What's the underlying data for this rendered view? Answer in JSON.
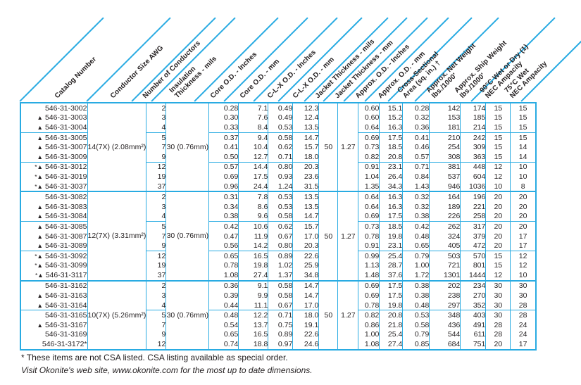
{
  "colors": {
    "accent": "#29abe2",
    "text": "#231f20",
    "background": "#ffffff"
  },
  "columns": [
    "Catalog Number",
    "Conductor Size AWG",
    "Number of Conductors",
    "Insulation\nThickness - mils",
    "Core O.D. - Inches",
    "Core O.D. - mm",
    "C-L-X O.D. - Inches",
    "C-L-X O.D. - mm",
    "Jacket Thickness - mils",
    "Jacket Thickness - mm",
    "Approx. O.D. - Inches",
    "Approx. O.D. - mm",
    "Cross-Sectional\nArea (sq. in.) †",
    "Approx. Net Weight\nlbs./1000'",
    "Approx. Ship Weight\nlbs./1000'",
    "90°C Wet or Dry (1)\nNEC Ampacity",
    "75°C Wet\nNEC Ampacity"
  ],
  "marker_legend": {
    "triangle": "▲",
    "asterisk": "*"
  },
  "groups": [
    {
      "conductor_size": "14(7X)\n(2.08mm²)",
      "insulation": "30\n(0.76mm)",
      "jacket_mils": "50",
      "jacket_mm": "1.27",
      "rows": [
        {
          "m": "",
          "cat": "546-31-3002",
          "n": "2",
          "sub": false,
          "vals": [
            "0.28",
            "7.1",
            "0.49",
            "12.3",
            "0.60",
            "15.1",
            "0.28",
            "142",
            "174",
            "15",
            "15"
          ]
        },
        {
          "m": "▲",
          "cat": "546-31-3003",
          "n": "3",
          "sub": false,
          "vals": [
            "0.30",
            "7.6",
            "0.49",
            "12.4",
            "0.60",
            "15.2",
            "0.32",
            "153",
            "185",
            "15",
            "15"
          ]
        },
        {
          "m": "▲",
          "cat": "546-31-3004",
          "n": "4",
          "sub": false,
          "vals": [
            "0.33",
            "8.4",
            "0.53",
            "13.5",
            "0.64",
            "16.3",
            "0.36",
            "181",
            "214",
            "15",
            "15"
          ]
        },
        {
          "m": "▲",
          "cat": "546-31-3005",
          "n": "5",
          "sub": true,
          "vals": [
            "0.37",
            "9.4",
            "0.58",
            "14.7",
            "0.69",
            "17.5",
            "0.41",
            "210",
            "242",
            "15",
            "15"
          ]
        },
        {
          "m": "▲",
          "cat": "546-31-3007",
          "n": "7",
          "sub": false,
          "vals": [
            "0.41",
            "10.4",
            "0.62",
            "15.7",
            "0.73",
            "18.5",
            "0.46",
            "254",
            "309",
            "15",
            "14"
          ]
        },
        {
          "m": "▲",
          "cat": "546-31-3009",
          "n": "9",
          "sub": false,
          "vals": [
            "0.50",
            "12.7",
            "0.71",
            "18.0",
            "0.82",
            "20.8",
            "0.57",
            "308",
            "363",
            "15",
            "14"
          ]
        },
        {
          "m": "*▲",
          "cat": "546-31-3012",
          "n": "12",
          "sub": true,
          "vals": [
            "0.57",
            "14.4",
            "0.80",
            "20.3",
            "0.91",
            "23.1",
            "0.71",
            "381",
            "448",
            "12",
            "10"
          ]
        },
        {
          "m": "*▲",
          "cat": "546-31-3019",
          "n": "19",
          "sub": false,
          "vals": [
            "0.69",
            "17.5",
            "0.93",
            "23.6",
            "1.04",
            "26.4",
            "0.84",
            "537",
            "604",
            "12",
            "10"
          ]
        },
        {
          "m": "*▲",
          "cat": "546-31-3037",
          "n": "37",
          "sub": false,
          "vals": [
            "0.96",
            "24.4",
            "1.24",
            "31.5",
            "1.35",
            "34.3",
            "1.43",
            "946",
            "1036",
            "10",
            "8"
          ]
        }
      ]
    },
    {
      "conductor_size": "12(7X)\n(3.31mm²)",
      "insulation": "30\n(0.76mm)",
      "jacket_mils": "50",
      "jacket_mm": "1.27",
      "rows": [
        {
          "m": "",
          "cat": "546-31-3082",
          "n": "2",
          "sub": false,
          "vals": [
            "0.31",
            "7.8",
            "0.53",
            "13.5",
            "0.64",
            "16.3",
            "0.32",
            "164",
            "196",
            "20",
            "20"
          ]
        },
        {
          "m": "▲",
          "cat": "546-31-3083",
          "n": "3",
          "sub": false,
          "vals": [
            "0.34",
            "8.6",
            "0.53",
            "13.5",
            "0.64",
            "16.3",
            "0.32",
            "189",
            "221",
            "20",
            "20"
          ]
        },
        {
          "m": "▲",
          "cat": "546-31-3084",
          "n": "4",
          "sub": false,
          "vals": [
            "0.38",
            "9.6",
            "0.58",
            "14.7",
            "0.69",
            "17.5",
            "0.38",
            "226",
            "258",
            "20",
            "20"
          ]
        },
        {
          "m": "▲",
          "cat": "546-31-3085",
          "n": "5",
          "sub": true,
          "vals": [
            "0.42",
            "10.6",
            "0.62",
            "15.7",
            "0.73",
            "18.5",
            "0.42",
            "262",
            "317",
            "20",
            "20"
          ]
        },
        {
          "m": "▲",
          "cat": "546-31-3087",
          "n": "7",
          "sub": false,
          "vals": [
            "0.47",
            "11.9",
            "0.67",
            "17.0",
            "0.78",
            "19.8",
            "0.48",
            "324",
            "379",
            "20",
            "17"
          ]
        },
        {
          "m": "▲",
          "cat": "546-31-3089",
          "n": "9",
          "sub": false,
          "vals": [
            "0.56",
            "14.2",
            "0.80",
            "20.3",
            "0.91",
            "23.1",
            "0.65",
            "405",
            "472",
            "20",
            "17"
          ]
        },
        {
          "m": "*▲",
          "cat": "546-31-3092",
          "n": "12",
          "sub": true,
          "vals": [
            "0.65",
            "16.5",
            "0.89",
            "22.6",
            "0.99",
            "25.4",
            "0.79",
            "503",
            "570",
            "15",
            "12"
          ]
        },
        {
          "m": "*▲",
          "cat": "546-31-3099",
          "n": "19",
          "sub": false,
          "vals": [
            "0.78",
            "19.8",
            "1.02",
            "25.9",
            "1.13",
            "28.7",
            "1.00",
            "721",
            "801",
            "15",
            "12"
          ]
        },
        {
          "m": "*▲",
          "cat": "546-31-3117",
          "n": "37",
          "sub": false,
          "vals": [
            "1.08",
            "27.4",
            "1.37",
            "34.8",
            "1.48",
            "37.6",
            "1.72",
            "1301",
            "1444",
            "12",
            "10"
          ]
        }
      ]
    },
    {
      "conductor_size": "10(7X)\n(5.26mm²)",
      "insulation": "30\n(0.76mm)",
      "jacket_mils": "50",
      "jacket_mm": "1.27",
      "rows": [
        {
          "m": "",
          "cat": "546-31-3162",
          "n": "2",
          "sub": false,
          "vals": [
            "0.36",
            "9.1",
            "0.58",
            "14.7",
            "0.69",
            "17.5",
            "0.38",
            "202",
            "234",
            "30",
            "30"
          ]
        },
        {
          "m": "▲",
          "cat": "546-31-3163",
          "n": "3",
          "sub": false,
          "vals": [
            "0.39",
            "9.9",
            "0.58",
            "14.7",
            "0.69",
            "17.5",
            "0.38",
            "238",
            "270",
            "30",
            "30"
          ]
        },
        {
          "m": "▲",
          "cat": "546-31-3164",
          "n": "4",
          "sub": false,
          "vals": [
            "0.44",
            "11.1",
            "0.67",
            "17.0",
            "0.78",
            "19.8",
            "0.48",
            "297",
            "352",
            "30",
            "28"
          ]
        },
        {
          "m": "",
          "cat": "546-31-3165",
          "n": "5",
          "sub": true,
          "vals": [
            "0.48",
            "12.2",
            "0.71",
            "18.0",
            "0.82",
            "20.8",
            "0.53",
            "348",
            "403",
            "30",
            "28"
          ]
        },
        {
          "m": "▲",
          "cat": "546-31-3167",
          "n": "7",
          "sub": false,
          "vals": [
            "0.54",
            "13.7",
            "0.75",
            "19.1",
            "0.86",
            "21.8",
            "0.58",
            "436",
            "491",
            "28",
            "24"
          ]
        },
        {
          "m": "",
          "cat": "546-31-3169",
          "n": "9",
          "sub": false,
          "vals": [
            "0.65",
            "16.5",
            "0.89",
            "22.6",
            "1.00",
            "25.4",
            "0.79",
            "544",
            "611",
            "28",
            "24"
          ]
        },
        {
          "m": "",
          "cat": "546-31-3172*",
          "n": "12",
          "sub": false,
          "vals": [
            "0.74",
            "18.8",
            "0.97",
            "24.6",
            "1.08",
            "27.4",
            "0.85",
            "684",
            "751",
            "20",
            "17"
          ]
        }
      ]
    }
  ],
  "footnotes": {
    "csa": "* These items are not CSA listed. CSA listing available as special order.",
    "website": "Visit Okonite's web site, www.okonite.com for the most up to date dimensions."
  }
}
